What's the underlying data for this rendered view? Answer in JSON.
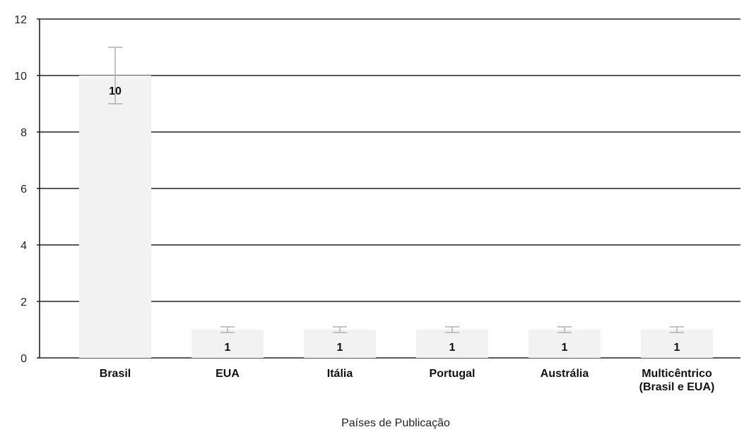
{
  "chart_data": {
    "type": "bar",
    "title": "",
    "xlabel": "Países de Publicação",
    "ylabel": "",
    "categories": [
      [
        "Brasil"
      ],
      [
        "EUA"
      ],
      [
        "Itália"
      ],
      [
        "Portugal"
      ],
      [
        "Austrália"
      ],
      [
        "Multicêntrico",
        "(Brasil e EUA)"
      ]
    ],
    "values": [
      10,
      1,
      1,
      1,
      1,
      1
    ],
    "error_bars": [
      {
        "low": 9,
        "high": 11
      },
      {
        "low": 0.9,
        "high": 1.1
      },
      {
        "low": 0.9,
        "high": 1.1
      },
      {
        "low": 0.9,
        "high": 1.1
      },
      {
        "low": 0.9,
        "high": 1.1
      },
      {
        "low": 0.9,
        "high": 1.1
      }
    ],
    "data_labels": [
      "10",
      "1",
      "1",
      "1",
      "1",
      "1"
    ],
    "ylim": [
      0,
      12
    ],
    "yticks": [
      0,
      2,
      4,
      6,
      8,
      10,
      12
    ],
    "grid": true,
    "legend": "none",
    "colors": {
      "bar": "#f2f2f2",
      "gridline": "#222222",
      "error_bar": "#b0b0b0"
    }
  }
}
